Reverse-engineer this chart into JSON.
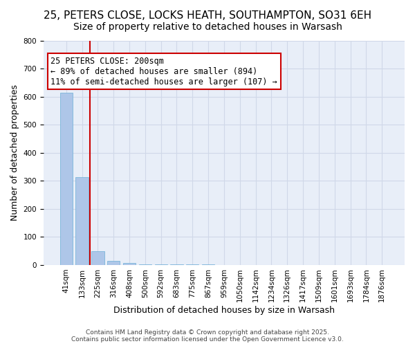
{
  "title_line1": "25, PETERS CLOSE, LOCKS HEATH, SOUTHAMPTON, SO31 6EH",
  "title_line2": "Size of property relative to detached houses in Warsash",
  "xlabel": "Distribution of detached houses by size in Warsash",
  "ylabel": "Number of detached properties",
  "categories": [
    "41sqm",
    "133sqm",
    "225sqm",
    "316sqm",
    "408sqm",
    "500sqm",
    "592sqm",
    "683sqm",
    "775sqm",
    "867sqm",
    "959sqm",
    "1050sqm",
    "1142sqm",
    "1234sqm",
    "1326sqm",
    "1417sqm",
    "1509sqm",
    "1601sqm",
    "1693sqm",
    "1784sqm",
    "1876sqm"
  ],
  "values": [
    614,
    314,
    48,
    14,
    6,
    3,
    2,
    1,
    1,
    1,
    0,
    0,
    0,
    0,
    0,
    0,
    0,
    0,
    0,
    0,
    0
  ],
  "bar_color": "#aec6e8",
  "bar_edge_color": "#6baed6",
  "vline_x": 1.5,
  "vline_color": "#cc0000",
  "annotation_text": "25 PETERS CLOSE: 200sqm\n← 89% of detached houses are smaller (894)\n11% of semi-detached houses are larger (107) →",
  "annotation_box_color": "#cc0000",
  "annotation_text_color": "black",
  "ylim": [
    0,
    800
  ],
  "yticks": [
    0,
    100,
    200,
    300,
    400,
    500,
    600,
    700,
    800
  ],
  "grid_color": "#d0d8e8",
  "background_color": "#e8eef8",
  "footer_line1": "Contains HM Land Registry data © Crown copyright and database right 2025.",
  "footer_line2": "Contains public sector information licensed under the Open Government Licence v3.0.",
  "title_fontsize": 11,
  "subtitle_fontsize": 10,
  "axis_label_fontsize": 9,
  "tick_fontsize": 7.5,
  "annotation_fontsize": 8.5,
  "footer_fontsize": 6.5
}
